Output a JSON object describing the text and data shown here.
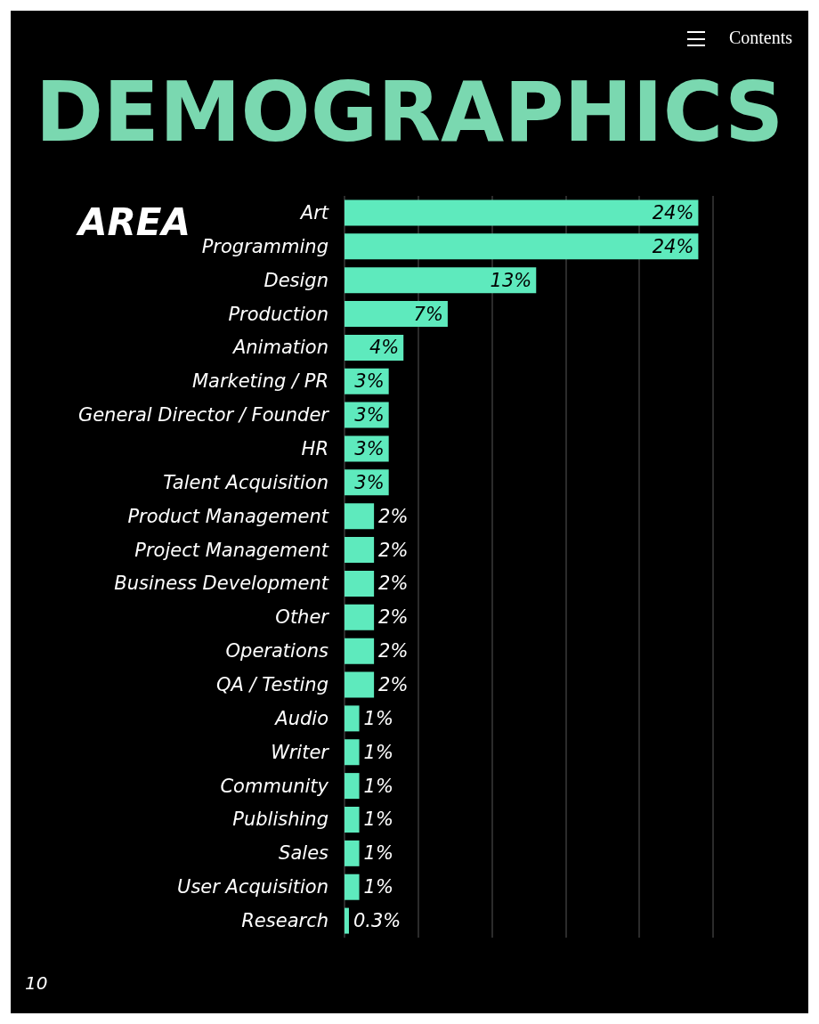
{
  "chart_data": {
    "type": "bar",
    "orientation": "horizontal",
    "title": "DEMOGRAPHICS",
    "subtitle": "AREA",
    "categories": [
      "Art",
      "Programming",
      "Design",
      "Production",
      "Animation",
      "Marketing / PR",
      "General Director / Founder",
      "HR",
      "Talent Acquisition",
      "Product Management",
      "Project Management",
      "Business Development",
      "Other",
      "Operations",
      "QA / Testing",
      "Audio",
      "Writer",
      "Community",
      "Publishing",
      "Sales",
      "User Acquisition",
      "Research"
    ],
    "values": [
      24,
      24,
      13,
      7,
      4,
      3,
      3,
      3,
      3,
      2,
      2,
      2,
      2,
      2,
      2,
      1,
      1,
      1,
      1,
      1,
      1,
      0.3
    ],
    "value_labels": [
      "24%",
      "24%",
      "13%",
      "7%",
      "4%",
      "3%",
      "3%",
      "3%",
      "3%",
      "2%",
      "2%",
      "2%",
      "2%",
      "2%",
      "2%",
      "1%",
      "1%",
      "1%",
      "1%",
      "1%",
      "1%",
      "0.3%"
    ],
    "color": "#5eeabd",
    "xlim": [
      0,
      25
    ],
    "xticks": [
      {
        "value": 0,
        "label": null
      },
      {
        "value": 5,
        "label": null
      },
      {
        "value": 10,
        "label": null
      },
      {
        "value": 15,
        "label": null
      },
      {
        "value": 20,
        "label": null
      },
      {
        "value": 25,
        "label": null
      }
    ],
    "grid": "x",
    "tick_labels": false,
    "annotations": [
      "Contents",
      "10"
    ]
  }
}
